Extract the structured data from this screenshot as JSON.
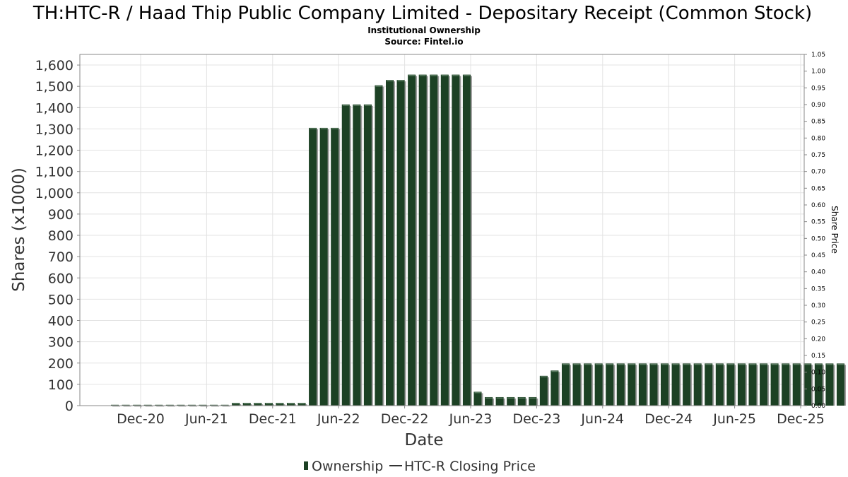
{
  "chart_data": {
    "type": "bar",
    "title": "TH:HTC-R / Haad Thip Public Company Limited - Depositary Receipt (Common Stock)",
    "subtitle": "Institutional Ownership",
    "source": "Source: Fintel.io",
    "xlabel": "Date",
    "ylabel": "Shares (x1000)",
    "y2label": "Share Price",
    "ylim": [
      0,
      1650
    ],
    "y2lim": [
      0,
      1.05
    ],
    "yticks": [
      "0",
      "100",
      "200",
      "300",
      "400",
      "500",
      "600",
      "700",
      "800",
      "900",
      "1,000",
      "1,100",
      "1,200",
      "1,300",
      "1,400",
      "1,500",
      "1,600"
    ],
    "y2ticks": [
      "0.00",
      "0.05",
      "0.10",
      "0.15",
      "0.20",
      "0.25",
      "0.30",
      "0.35",
      "0.40",
      "0.45",
      "0.50",
      "0.55",
      "0.60",
      "0.65",
      "0.70",
      "0.75",
      "0.80",
      "0.85",
      "0.90",
      "0.95",
      "1.00",
      "1.05"
    ],
    "xticks": [
      "Dec-20",
      "Jun-21",
      "Dec-21",
      "Jun-22",
      "Dec-22",
      "Jun-23",
      "Dec-23",
      "Jun-24",
      "Dec-24",
      "Jun-25",
      "Dec-25"
    ],
    "grid": true,
    "legend_position": "bottom",
    "bar_color": "#1c4124",
    "shadow_color": "#9a9a9a",
    "series": [
      {
        "name": "Ownership",
        "values": [
          0,
          0,
          0,
          0,
          0,
          0,
          0,
          0,
          0,
          0,
          0,
          13,
          13,
          13,
          13,
          13,
          13,
          13,
          1305,
          1305,
          1305,
          1415,
          1415,
          1415,
          1505,
          1530,
          1530,
          1555,
          1555,
          1555,
          1555,
          1555,
          1555,
          65,
          40,
          40,
          40,
          40,
          40,
          140,
          165,
          198,
          198,
          198,
          198,
          198,
          198,
          198,
          198,
          198,
          198,
          198,
          198,
          198,
          198,
          198,
          198,
          198,
          198,
          198,
          198,
          198,
          198,
          198,
          198,
          198,
          198
        ]
      },
      {
        "name": "HTC-R Closing Price",
        "values": []
      }
    ]
  }
}
